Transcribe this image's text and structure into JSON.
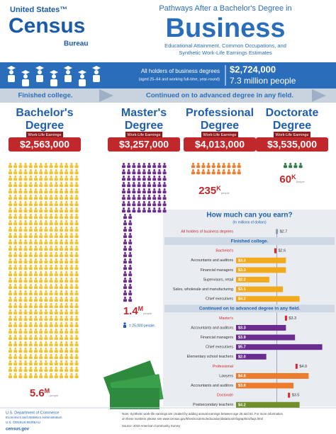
{
  "header": {
    "logo": [
      "United States™",
      "Census",
      "Bureau"
    ],
    "kicker": "Pathways After a Bachelor's Degree in",
    "title": "Business",
    "subtitle": [
      "Educational Attainment, Common Occupations, and",
      "Synthetic Work-Life Earnings Estimates"
    ]
  },
  "overview": {
    "label": "All holders of business degrees",
    "note": "(aged 25–64 and working full-time, year-round)",
    "earnings": "$2,724,000",
    "people": "7.3 million people"
  },
  "paths": [
    "Finished college.",
    "Continued on to advanced degree in any field."
  ],
  "degrees": [
    {
      "name": [
        "Bachelor's",
        "Degree"
      ],
      "earnings_label": "Work-Life Earnings",
      "earnings": "$2,563,000",
      "count": "5.6",
      "unit": "M",
      "unit_note": "people",
      "color": "#f2c12e"
    },
    {
      "name": [
        "Master's",
        "Degree"
      ],
      "earnings_label": "Work-Life Earnings",
      "earnings": "$3,257,000",
      "count": "1.4",
      "unit": "M",
      "unit_note": "people",
      "color": "#6b2c8f"
    },
    {
      "name": [
        "Professional",
        "Degree"
      ],
      "earnings_label": "Work-Life Earnings",
      "earnings": "$4,013,000",
      "count": "235",
      "unit": "K",
      "unit_note": "people",
      "color": "#ec7b2c"
    },
    {
      "name": [
        "Doctorate",
        "Degree"
      ],
      "earnings_label": "Work-Life Earnings",
      "earnings": "$3,535,000",
      "count": "60",
      "unit": "K",
      "unit_note": "people",
      "color": "#2f7a4a"
    }
  ],
  "icon_legend": "= 25,000 people",
  "chart_data": {
    "type": "bar",
    "title": "How much can you earn?",
    "subtitle": "(In millions of dollars)",
    "xlim": [
      0,
      6
    ],
    "reference": {
      "category": "All holders of business degrees",
      "value": 2.7,
      "value_label": "$2.7"
    },
    "sections": [
      {
        "title": "Finished college.",
        "groups": [
          {
            "category": "Bachelor's",
            "value": 2.6,
            "value_label": "$2.6",
            "color": "#d9262b",
            "occupations": {
              "categories": [
                "Accountants and auditors",
                "Financial managers",
                "Supervisors, retail",
                "Sales, wholesale and manufacturing",
                "Chief executives"
              ],
              "values": [
                3.3,
                3.3,
                2.2,
                3.1,
                4.2
              ],
              "value_labels": [
                "$3.3",
                "$3.3",
                "$2.2",
                "$3.1",
                "$4.2"
              ],
              "color": "#f2a91e"
            }
          }
        ]
      },
      {
        "title": "Continued on to advanced degree in any field.",
        "groups": [
          {
            "category": "Master's",
            "value": 3.3,
            "value_label": "$3.3",
            "color": "#d9262b",
            "occupations": {
              "categories": [
                "Accountants and auditors",
                "Financial managers",
                "Chief executives",
                "Elementary school teachers"
              ],
              "values": [
                3.3,
                3.9,
                5.7,
                2.0
              ],
              "value_labels": [
                "$3.3",
                "$3.9",
                "$5.7",
                "$2.0"
              ],
              "color": "#6b2c8f"
            }
          },
          {
            "category": "Professional",
            "value": 4.0,
            "value_label": "$4.0",
            "color": "#d9262b",
            "occupations": {
              "categories": [
                "Lawyers",
                "Accountants and auditors"
              ],
              "values": [
                4.8,
                3.8
              ],
              "value_labels": [
                "$4.8",
                "$3.8"
              ],
              "color": "#ec7b2c"
            }
          },
          {
            "category": "Doctorate",
            "value": 3.5,
            "value_label": "$3.5",
            "color": "#d9262b",
            "occupations": {
              "categories": [
                "Postsecondary teachers"
              ],
              "values": [
                4.2
              ],
              "value_labels": [
                "$4.2"
              ],
              "color": "#6f8f2a"
            }
          }
        ]
      }
    ]
  },
  "footer": {
    "agency": [
      "U.S. Department of Commerce",
      "Economics and Statistics Administration",
      "U.S. CENSUS BUREAU"
    ],
    "site": "census.gov",
    "note": [
      "Note: Synthetic work-life earnings are created by adding annual earnings between age 25 and 64. For more information",
      "on these numbers please see www.census.gov/hhes/socdemo/education/data/acs/infographics/faqs.html"
    ],
    "source": "Source: 2010 American Community Survey"
  }
}
